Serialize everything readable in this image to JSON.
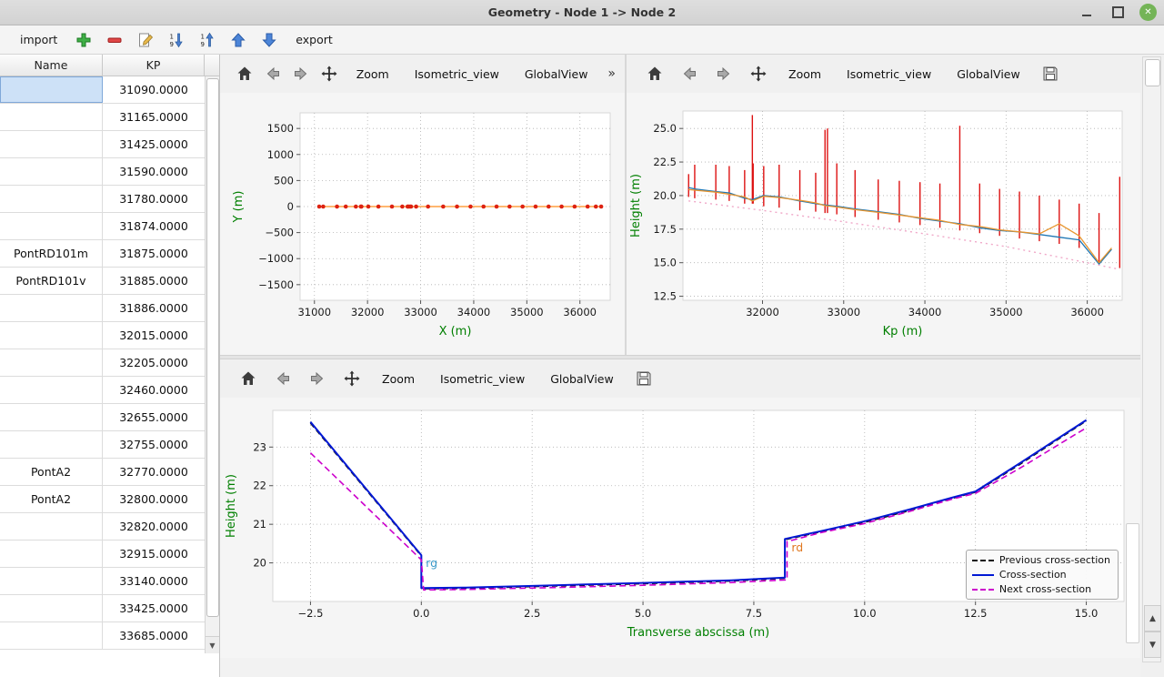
{
  "window": {
    "title": "Geometry - Node 1 -> Node 2"
  },
  "main_toolbar": {
    "import_label": "import",
    "export_label": "export"
  },
  "plot_toolbar": {
    "zoom": "Zoom",
    "isometric": "Isometric_view",
    "global": "GlobalView",
    "overflow": "»"
  },
  "icons": {
    "add": "green-plus",
    "remove": "red-minus",
    "edit": "pencil-page",
    "sort_descending": "arrow-down-1-9",
    "sort_ascending": "arrow-up-1-9",
    "move_up": "blue-arrow-up",
    "move_down": "blue-arrow-down",
    "home": "house",
    "back": "arrow-left",
    "forward": "arrow-right",
    "pan": "four-way-arrows",
    "save": "floppy-disk",
    "minimize": "dash",
    "restore": "square-outline",
    "close": "green-circle-x"
  },
  "colors": {
    "axis_label_green": "#007f00",
    "close_button_green": "#74b457",
    "selection_blue": "#cde1f7",
    "profile_red": "#dd1111",
    "cross_section_blue": "#0018d4",
    "next_magenta": "#cc00cc",
    "previous_black": "#111111"
  },
  "table": {
    "columns": [
      "Name",
      "KP"
    ],
    "rows": [
      [
        "",
        "31090.0000"
      ],
      [
        "",
        "31165.0000"
      ],
      [
        "",
        "31425.0000"
      ],
      [
        "",
        "31590.0000"
      ],
      [
        "",
        "31780.0000"
      ],
      [
        "",
        "31874.0000"
      ],
      [
        "PontRD101m",
        "31875.0000"
      ],
      [
        "PontRD101v",
        "31885.0000"
      ],
      [
        "",
        "31886.0000"
      ],
      [
        "",
        "32015.0000"
      ],
      [
        "",
        "32205.0000"
      ],
      [
        "",
        "32460.0000"
      ],
      [
        "",
        "32655.0000"
      ],
      [
        "",
        "32755.0000"
      ],
      [
        "PontA2",
        "32770.0000"
      ],
      [
        "PontA2",
        "32800.0000"
      ],
      [
        "",
        "32820.0000"
      ],
      [
        "",
        "32915.0000"
      ],
      [
        "",
        "33140.0000"
      ],
      [
        "",
        "33425.0000"
      ],
      [
        "",
        "33685.0000"
      ]
    ],
    "selected_cell": {
      "row": 0,
      "column": "Name"
    }
  },
  "legend": {
    "items": [
      {
        "label": "Previous cross-section",
        "color": "#111111",
        "dash": "dashed"
      },
      {
        "label": "Cross-section",
        "color": "#0018d4",
        "dash": "solid"
      },
      {
        "label": "Next cross-section",
        "color": "#cc00cc",
        "dash": "dashed"
      }
    ]
  },
  "charts": {
    "xy": {
      "type": "scatter",
      "title": "",
      "xlabel": "X (m)",
      "ylabel": "Y (m)",
      "xlim": [
        30730,
        36570
      ],
      "ylim": [
        -1800,
        1800
      ],
      "xticks": [
        31000,
        32000,
        33000,
        34000,
        35000,
        36000
      ],
      "xtick_labels": [
        "31000",
        "32000",
        "33000",
        "34000",
        "35000",
        "36000"
      ],
      "yticks": [
        -1500,
        -1000,
        -500,
        0,
        500,
        1000,
        1500
      ],
      "ytick_labels": [
        "−1500",
        "−1000",
        "−500",
        "0",
        "500",
        "1000",
        "1500"
      ],
      "series": [
        {
          "type": "line",
          "name": "axis-line",
          "color": "#ff8c1a",
          "width": 1.2,
          "points": [
            [
              31090,
              0
            ],
            [
              36400,
              0
            ]
          ]
        },
        {
          "type": "scatter",
          "name": "cross-section-positions",
          "color": "#dd2211",
          "r": 2.3,
          "y": 0,
          "x": [
            31090,
            31165,
            31425,
            31590,
            31780,
            31875,
            31885,
            32015,
            32205,
            32460,
            32655,
            32755,
            32770,
            32800,
            32820,
            32915,
            33140,
            33425,
            33685,
            33940,
            34185,
            34430,
            34675,
            34920,
            35165,
            35410,
            35655,
            35900,
            36145,
            36300,
            36400
          ]
        }
      ]
    },
    "profile": {
      "type": "line",
      "title": "",
      "xlabel": "Kp (m)",
      "ylabel": "Height (m)",
      "xlim": [
        31020,
        36430
      ],
      "ylim": [
        12.2,
        26.3
      ],
      "xticks": [
        32000,
        33000,
        34000,
        35000,
        36000
      ],
      "xtick_labels": [
        "32000",
        "33000",
        "34000",
        "35000",
        "36000"
      ],
      "yticks": [
        12.5,
        15.0,
        17.5,
        20.0,
        22.5,
        25.0
      ],
      "ytick_labels": [
        "12.5",
        "15.0",
        "17.5",
        "20.0",
        "22.5",
        "25.0"
      ],
      "series": [
        {
          "type": "line",
          "name": "thalweg",
          "color": "#f0a8c8",
          "width": 1.4,
          "dash": "2,4",
          "points": [
            [
              31090,
              19.6
            ],
            [
              32000,
              18.9
            ],
            [
              33000,
              18.05
            ],
            [
              34000,
              17.15
            ],
            [
              35000,
              16.2
            ],
            [
              36000,
              15.0
            ],
            [
              36400,
              14.5
            ]
          ]
        },
        {
          "type": "vlines",
          "name": "cross-sections",
          "color": "#dd1111",
          "width": 1.4,
          "segments": [
            [
              31090,
              19.9,
              21.6
            ],
            [
              31165,
              19.8,
              22.3
            ],
            [
              31425,
              19.7,
              22.3
            ],
            [
              31590,
              19.6,
              22.2
            ],
            [
              31780,
              19.4,
              21.9
            ],
            [
              31875,
              19.4,
              26.0
            ],
            [
              31885,
              19.4,
              22.4
            ],
            [
              32015,
              19.2,
              22.2
            ],
            [
              32205,
              19.1,
              22.3
            ],
            [
              32460,
              18.9,
              21.9
            ],
            [
              32655,
              18.8,
              21.7
            ],
            [
              32770,
              18.7,
              24.9
            ],
            [
              32800,
              18.7,
              25.0
            ],
            [
              32915,
              18.6,
              22.4
            ],
            [
              33140,
              18.4,
              21.9
            ],
            [
              33425,
              18.2,
              21.2
            ],
            [
              33685,
              18.0,
              21.1
            ],
            [
              33940,
              17.8,
              21.0
            ],
            [
              34185,
              17.6,
              20.9
            ],
            [
              34430,
              17.4,
              25.2
            ],
            [
              34675,
              17.2,
              20.9
            ],
            [
              34920,
              17.0,
              20.5
            ],
            [
              35165,
              16.8,
              20.3
            ],
            [
              35410,
              16.6,
              20.0
            ],
            [
              35655,
              16.4,
              19.7
            ],
            [
              35900,
              16.1,
              19.4
            ],
            [
              36145,
              14.9,
              18.7
            ],
            [
              36400,
              14.6,
              21.4
            ]
          ]
        },
        {
          "type": "line",
          "name": "left-bank",
          "color": "#1f77b4",
          "width": 1.3,
          "points": [
            [
              31090,
              20.6
            ],
            [
              31165,
              20.5
            ],
            [
              31425,
              20.3
            ],
            [
              31590,
              20.2
            ],
            [
              31780,
              19.8
            ],
            [
              31875,
              19.7
            ],
            [
              32015,
              20.0
            ],
            [
              32205,
              19.9
            ],
            [
              32460,
              19.6
            ],
            [
              32655,
              19.4
            ],
            [
              32770,
              19.3
            ],
            [
              32915,
              19.2
            ],
            [
              33140,
              19.0
            ],
            [
              33425,
              18.8
            ],
            [
              33685,
              18.6
            ],
            [
              33940,
              18.3
            ],
            [
              34185,
              18.1
            ],
            [
              34430,
              17.9
            ],
            [
              34675,
              17.6
            ],
            [
              34920,
              17.4
            ],
            [
              35165,
              17.3
            ],
            [
              35410,
              17.1
            ],
            [
              35655,
              16.9
            ],
            [
              35900,
              16.7
            ],
            [
              36145,
              14.9
            ],
            [
              36300,
              16.0
            ]
          ]
        },
        {
          "type": "line",
          "name": "right-bank",
          "color": "#e8952e",
          "width": 1.3,
          "points": [
            [
              31090,
              20.45
            ],
            [
              31165,
              20.4
            ],
            [
              31425,
              20.25
            ],
            [
              31590,
              20.1
            ],
            [
              31780,
              19.9
            ],
            [
              31875,
              19.6
            ],
            [
              32015,
              19.95
            ],
            [
              32205,
              19.85
            ],
            [
              32460,
              19.65
            ],
            [
              32655,
              19.45
            ],
            [
              32770,
              19.25
            ],
            [
              32915,
              19.15
            ],
            [
              33140,
              18.95
            ],
            [
              33425,
              18.75
            ],
            [
              33685,
              18.55
            ],
            [
              33940,
              18.35
            ],
            [
              34185,
              18.15
            ],
            [
              34430,
              17.85
            ],
            [
              34675,
              17.7
            ],
            [
              34920,
              17.45
            ],
            [
              35165,
              17.3
            ],
            [
              35410,
              17.15
            ],
            [
              35655,
              17.9
            ],
            [
              35900,
              17.0
            ],
            [
              36145,
              15.0
            ],
            [
              36300,
              16.1
            ]
          ]
        }
      ]
    },
    "cross_section": {
      "type": "line",
      "title": "",
      "xlabel": "Transverse abscissa (m)",
      "ylabel": "Height (m)",
      "xlim": [
        -3.35,
        15.85
      ],
      "ylim": [
        19.0,
        23.95
      ],
      "xticks": [
        -2.5,
        0,
        2.5,
        5,
        7.5,
        10,
        12.5,
        15
      ],
      "xtick_labels": [
        "−2.5",
        "0.0",
        "2.5",
        "5.0",
        "7.5",
        "10.0",
        "12.5",
        "15.0"
      ],
      "yticks": [
        20,
        21,
        22,
        23
      ],
      "ytick_labels": [
        "20",
        "21",
        "22",
        "23"
      ],
      "series": [
        {
          "type": "line",
          "name": "previous-cross-section",
          "color": "#111111",
          "width": 1.6,
          "dash": "6,4",
          "points": [
            [
              -2.5,
              23.62
            ],
            [
              0,
              20.18
            ],
            [
              0,
              19.33
            ],
            [
              1,
              19.34
            ],
            [
              3,
              19.4
            ],
            [
              5,
              19.46
            ],
            [
              7,
              19.53
            ],
            [
              8.2,
              19.6
            ],
            [
              8.2,
              20.6
            ],
            [
              9,
              20.8
            ],
            [
              10,
              21.05
            ],
            [
              11,
              21.35
            ],
            [
              12,
              21.68
            ],
            [
              12.5,
              21.83
            ],
            [
              13.5,
              22.55
            ],
            [
              15,
              23.68
            ]
          ]
        },
        {
          "type": "line",
          "name": "cross-section",
          "color": "#0018d4",
          "width": 2,
          "points": [
            [
              -2.5,
              23.65
            ],
            [
              0,
              20.2
            ],
            [
              0,
              19.35
            ],
            [
              1,
              19.36
            ],
            [
              3,
              19.42
            ],
            [
              5,
              19.48
            ],
            [
              7,
              19.55
            ],
            [
              8.2,
              19.62
            ],
            [
              8.2,
              20.62
            ],
            [
              9,
              20.82
            ],
            [
              10,
              21.08
            ],
            [
              11,
              21.38
            ],
            [
              12,
              21.7
            ],
            [
              12.5,
              21.85
            ],
            [
              13.5,
              22.58
            ],
            [
              15,
              23.7
            ]
          ]
        },
        {
          "type": "line",
          "name": "next-cross-section",
          "color": "#cc00cc",
          "width": 1.6,
          "dash": "7,4",
          "points": [
            [
              -2.5,
              22.85
            ],
            [
              0,
              20.08
            ],
            [
              0.05,
              19.3
            ],
            [
              1,
              19.31
            ],
            [
              3,
              19.36
            ],
            [
              5,
              19.42
            ],
            [
              7,
              19.49
            ],
            [
              8.25,
              19.56
            ],
            [
              8.25,
              20.55
            ],
            [
              9,
              20.78
            ],
            [
              10,
              21.02
            ],
            [
              11,
              21.33
            ],
            [
              12,
              21.66
            ],
            [
              12.5,
              21.8
            ],
            [
              13.5,
              22.45
            ],
            [
              15,
              23.5
            ]
          ]
        },
        {
          "type": "labels",
          "name": "bank-labels",
          "items": [
            {
              "x": 0.1,
              "y": 19.9,
              "text": "rg",
              "color": "#3a99c9"
            },
            {
              "x": 8.35,
              "y": 20.3,
              "text": "rd",
              "color": "#e07820"
            }
          ]
        }
      ]
    }
  }
}
